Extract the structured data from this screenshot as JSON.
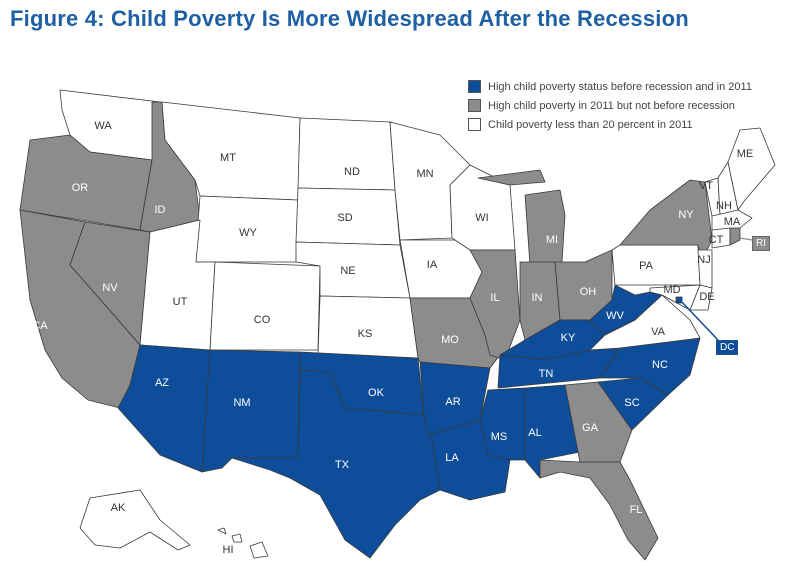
{
  "title": "Figure 4:  Child Poverty Is More Widespread After the Recession",
  "colors": {
    "high_before_and_2011": "#0e4d99",
    "high_2011_only": "#8c8c8c",
    "low": "#ffffff"
  },
  "legend": [
    {
      "key": "high_before_and_2011",
      "label": "High child poverty status before recession and in 2011"
    },
    {
      "key": "high_2011_only",
      "label": "High child poverty in 2011 but not before recession"
    },
    {
      "key": "low",
      "label": "Child poverty less than 20 percent in 2011"
    }
  ],
  "states": {
    "WA": "low",
    "OR": "high_2011_only",
    "CA": "high_2011_only",
    "NV": "high_2011_only",
    "ID": "high_2011_only",
    "MT": "low",
    "WY": "low",
    "UT": "low",
    "CO": "low",
    "AZ": "high_before_and_2011",
    "NM": "high_before_and_2011",
    "ND": "low",
    "SD": "low",
    "NE": "low",
    "KS": "low",
    "OK": "high_before_and_2011",
    "TX": "high_before_and_2011",
    "MN": "low",
    "IA": "low",
    "MO": "high_2011_only",
    "AR": "high_before_and_2011",
    "LA": "high_before_and_2011",
    "WI": "low",
    "IL": "high_2011_only",
    "MI": "high_2011_only",
    "IN": "high_2011_only",
    "OH": "high_2011_only",
    "KY": "high_before_and_2011",
    "TN": "high_before_and_2011",
    "MS": "high_before_and_2011",
    "AL": "high_before_and_2011",
    "GA": "high_2011_only",
    "FL": "high_2011_only",
    "SC": "high_before_and_2011",
    "NC": "high_before_and_2011",
    "VA": "low",
    "WV": "high_before_and_2011",
    "PA": "low",
    "NY": "high_2011_only",
    "VT": "low",
    "NH": "low",
    "ME": "low",
    "MA": "low",
    "RI": "high_2011_only",
    "CT": "low",
    "NJ": "low",
    "DE": "low",
    "MD": "low",
    "DC": "high_before_and_2011",
    "AK": "low",
    "HI": "low"
  },
  "callouts": {
    "DC": "DC",
    "RI": "RI"
  }
}
